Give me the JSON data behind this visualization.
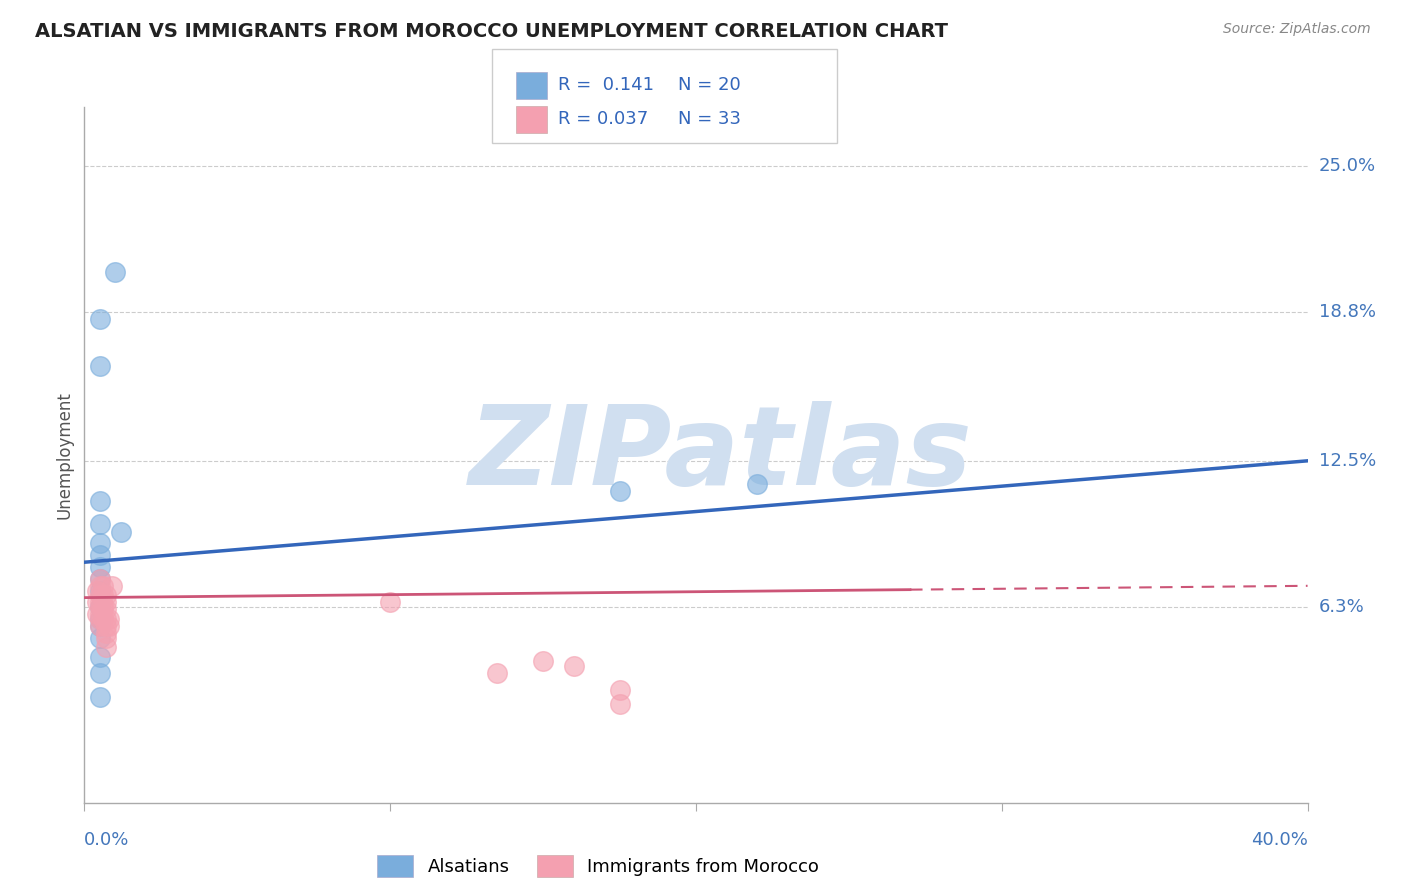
{
  "title": "ALSATIAN VS IMMIGRANTS FROM MOROCCO UNEMPLOYMENT CORRELATION CHART",
  "source": "Source: ZipAtlas.com",
  "ylabel": "Unemployment",
  "right_ytick_values": [
    0.063,
    0.125,
    0.188,
    0.25
  ],
  "right_ytick_labels": [
    "6.3%",
    "12.5%",
    "18.8%",
    "25.0%"
  ],
  "xlim": [
    0.0,
    0.4
  ],
  "ylim": [
    -0.02,
    0.275
  ],
  "legend_r1": "R =  0.141",
  "legend_n1": "N = 20",
  "legend_r2": "R = 0.037",
  "legend_n2": "N = 33",
  "alsatians_x": [
    0.01,
    0.005,
    0.005,
    0.005,
    0.005,
    0.005,
    0.005,
    0.005,
    0.012,
    0.005,
    0.005,
    0.005,
    0.005,
    0.005,
    0.005,
    0.005,
    0.005,
    0.005,
    0.22,
    0.175
  ],
  "alsatians_y": [
    0.205,
    0.185,
    0.165,
    0.108,
    0.098,
    0.09,
    0.085,
    0.08,
    0.095,
    0.075,
    0.07,
    0.063,
    0.058,
    0.055,
    0.05,
    0.042,
    0.035,
    0.025,
    0.115,
    0.112
  ],
  "morocco_x": [
    0.004,
    0.004,
    0.004,
    0.005,
    0.005,
    0.005,
    0.005,
    0.005,
    0.005,
    0.005,
    0.005,
    0.006,
    0.006,
    0.006,
    0.006,
    0.006,
    0.007,
    0.007,
    0.007,
    0.007,
    0.007,
    0.007,
    0.007,
    0.007,
    0.008,
    0.008,
    0.009,
    0.1,
    0.135,
    0.15,
    0.16,
    0.175,
    0.175
  ],
  "morocco_y": [
    0.07,
    0.065,
    0.06,
    0.075,
    0.072,
    0.068,
    0.065,
    0.063,
    0.06,
    0.058,
    0.055,
    0.072,
    0.068,
    0.064,
    0.062,
    0.058,
    0.068,
    0.065,
    0.062,
    0.058,
    0.055,
    0.052,
    0.05,
    0.046,
    0.058,
    0.055,
    0.072,
    0.065,
    0.035,
    0.04,
    0.038,
    0.028,
    0.022
  ],
  "blue_color": "#7aaddc",
  "pink_color": "#f4a0b0",
  "trend_blue_color": "#3366bb",
  "trend_pink_color": "#cc5577",
  "trend_blue_start_y": 0.082,
  "trend_blue_end_y": 0.125,
  "trend_pink_start_y": 0.067,
  "trend_pink_end_y": 0.072,
  "trend_pink_dash_start_x": 0.27,
  "watermark_text": "ZIPatlas",
  "watermark_color": "#d0dff0",
  "background_color": "#ffffff",
  "grid_color": "#cccccc"
}
